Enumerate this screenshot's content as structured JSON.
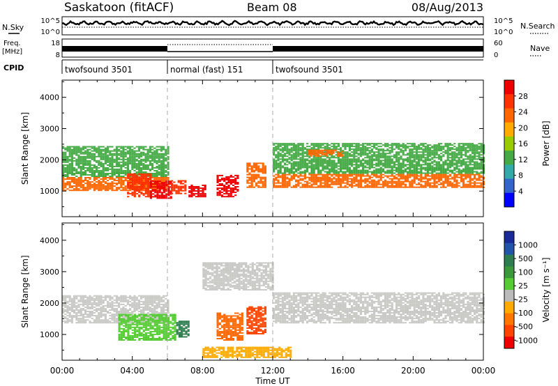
{
  "header": {
    "station": "Saskatoon (fitACF)",
    "beam": "Beam 08",
    "date": "08/Aug/2013"
  },
  "nsky_panel": {
    "left_label": "N.Sky",
    "right_label": "N.Search",
    "left_ticks": [
      "10^5",
      "10^0"
    ],
    "right_ticks": [
      "10^5",
      "10^0"
    ]
  },
  "freq_panel": {
    "left_label_1": "Freq.",
    "left_label_2": "[MHz]",
    "left_ticks": [
      "18",
      "8"
    ],
    "right_label": "Nave",
    "right_ticks": [
      "60",
      "0"
    ]
  },
  "cpid_panel": {
    "label": "CPID",
    "segments": [
      {
        "name": "twofsound 3501",
        "start_h": 0,
        "end_h": 6
      },
      {
        "name": "normal (fast) 151",
        "start_h": 6,
        "end_h": 12
      },
      {
        "name": "twofsound 3501",
        "start_h": 12,
        "end_h": 24
      }
    ]
  },
  "chart_data": [
    {
      "type": "heatmap",
      "title": "",
      "ylabel": "Slant Range [km]",
      "xlabel": "",
      "xlim_hours": [
        0,
        24
      ],
      "ylim": [
        180,
        4550
      ],
      "yticks": [
        "1000",
        "2000",
        "3000",
        "4000"
      ],
      "colorbar": {
        "label": "Power [dB]",
        "ticks": [
          "28",
          "24",
          "20",
          "16",
          "12",
          "8",
          "4"
        ],
        "levels": [
          {
            "color": "#ee0000",
            "value": 30
          },
          {
            "color": "#ff3300",
            "value": 28
          },
          {
            "color": "#ff6600",
            "value": 24
          },
          {
            "color": "#ffaa00",
            "value": 20
          },
          {
            "color": "#99cc00",
            "value": 16
          },
          {
            "color": "#44aa44",
            "value": 12
          },
          {
            "color": "#33aaaa",
            "value": 8
          },
          {
            "color": "#3366cc",
            "value": 4
          },
          {
            "color": "#0000ff",
            "value": 0
          }
        ]
      },
      "bands": [
        {
          "t0": 0.0,
          "t1": 6.0,
          "r0": 1000,
          "r1": 1450,
          "color": "#ff6600"
        },
        {
          "t0": 0.0,
          "t1": 6.0,
          "r0": 1450,
          "r1": 2400,
          "color": "#44aa44"
        },
        {
          "t0": 3.7,
          "t1": 5.0,
          "r0": 800,
          "r1": 1550,
          "color": "#ff3300"
        },
        {
          "t0": 5.0,
          "t1": 6.2,
          "r0": 750,
          "r1": 1300,
          "color": "#ee0000"
        },
        {
          "t0": 6.2,
          "t1": 7.0,
          "r0": 900,
          "r1": 1350,
          "color": "#ff3300"
        },
        {
          "t0": 7.2,
          "t1": 8.2,
          "r0": 800,
          "r1": 1200,
          "color": "#ee0000"
        },
        {
          "t0": 8.8,
          "t1": 10.0,
          "r0": 800,
          "r1": 1500,
          "color": "#ee0000"
        },
        {
          "t0": 10.5,
          "t1": 11.6,
          "r0": 1100,
          "r1": 1900,
          "color": "#ff6600"
        },
        {
          "t0": 12.0,
          "t1": 24.0,
          "r0": 1100,
          "r1": 1550,
          "color": "#ff6600"
        },
        {
          "t0": 12.0,
          "t1": 24.0,
          "r0": 1550,
          "r1": 2500,
          "color": "#44aa44"
        },
        {
          "t0": 14.0,
          "t1": 16.0,
          "r0": 2100,
          "r1": 2300,
          "color": "#ff6600"
        }
      ]
    },
    {
      "type": "heatmap",
      "title": "",
      "ylabel": "Slant Range [km]",
      "xlabel": "Time UT",
      "xlim_hours": [
        0,
        24
      ],
      "ylim": [
        180,
        4550
      ],
      "yticks": [
        "1000",
        "2000",
        "3000",
        "4000"
      ],
      "xticks": [
        "00:00",
        "04:00",
        "08:00",
        "12:00",
        "16:00",
        "20:00",
        "00:00"
      ],
      "colorbar": {
        "label": "Velocity [m s⁻¹]",
        "ticks": [
          "1000",
          "500",
          "100",
          "25",
          "-25",
          "-100",
          "-500",
          "-1000"
        ],
        "levels": [
          {
            "color": "#1a2a99",
            "value": 1000
          },
          {
            "color": "#2255aa",
            "value": 750
          },
          {
            "color": "#2e7d4f",
            "value": 500
          },
          {
            "color": "#3a9a3a",
            "value": 250
          },
          {
            "color": "#55cc33",
            "value": 100
          },
          {
            "color": "#bbbbbb",
            "value": 0
          },
          {
            "color": "#ffaa00",
            "value": -100
          },
          {
            "color": "#ff7700",
            "value": -250
          },
          {
            "color": "#ff4400",
            "value": -500
          },
          {
            "color": "#ee0000",
            "value": -1000
          }
        ]
      },
      "bands": [
        {
          "t0": 0.0,
          "t1": 6.0,
          "r0": 1350,
          "r1": 2250,
          "color": "#c8c8c4"
        },
        {
          "t0": 12.0,
          "t1": 24.0,
          "r0": 1350,
          "r1": 2300,
          "color": "#c8c8c4"
        },
        {
          "t0": 3.2,
          "t1": 6.5,
          "r0": 800,
          "r1": 1650,
          "color": "#55cc33"
        },
        {
          "t0": 6.5,
          "t1": 7.2,
          "r0": 900,
          "r1": 1400,
          "color": "#2e7d4f"
        },
        {
          "t0": 8.8,
          "t1": 10.2,
          "r0": 800,
          "r1": 1700,
          "color": "#ff6600"
        },
        {
          "t0": 10.5,
          "t1": 11.6,
          "r0": 1000,
          "r1": 1900,
          "color": "#ff4400"
        },
        {
          "t0": 8.0,
          "t1": 12.0,
          "r0": 2400,
          "r1": 3300,
          "color": "#c8c8c4"
        },
        {
          "t0": 8.0,
          "t1": 13.0,
          "r0": 250,
          "r1": 600,
          "color": "#ffaa00"
        }
      ]
    }
  ]
}
